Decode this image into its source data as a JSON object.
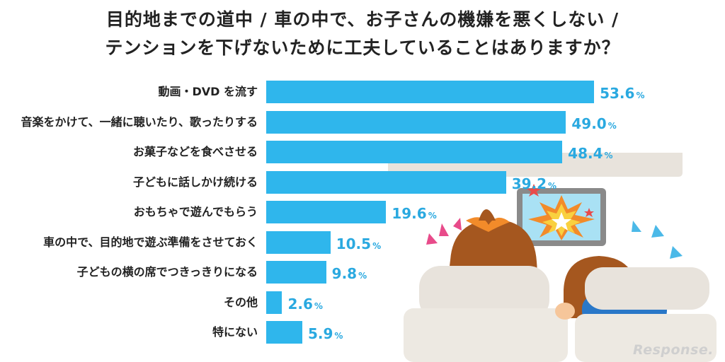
{
  "chart_data": {
    "type": "bar",
    "orientation": "horizontal",
    "title": "目的地までの道中 / 車の中で、お子さんの機嫌を悪くしない / テンションを下げないために工夫していることはありますか？",
    "title_lines": [
      "目的地までの道中 / 車の中で、お子さんの機嫌を悪くしない /",
      "テンションを下げないために工夫していることはありますか？"
    ],
    "categories": [
      "動画・DVD を流す",
      "音楽をかけて、一緒に聴いたり、歌ったりする",
      "お菓子などを食べさせる",
      "子どもに話しかけ続ける",
      "おもちゃで遊んでもらう",
      "車の中で、目的地で遊ぶ準備をさせておく",
      "子どもの横の席でつきっきりになる",
      "その他",
      "特にない"
    ],
    "values": [
      53.6,
      49.0,
      48.4,
      39.2,
      19.6,
      10.5,
      9.8,
      2.6,
      5.9
    ],
    "value_labels": [
      "53.6",
      "49.0",
      "48.4",
      "39.2",
      "19.6",
      "10.5",
      "9.8",
      "2.6",
      "5.9"
    ],
    "unit": "%",
    "xlim": [
      0,
      60
    ],
    "bar_color": "#2fb6ec",
    "label_color": "#2aa9e0",
    "grid": false,
    "legend": "none"
  },
  "illustration": {
    "description_icon": "children-in-car-watching-screen-illustration",
    "screen_icon": "explosion-star-icon"
  },
  "watermark": "Response."
}
